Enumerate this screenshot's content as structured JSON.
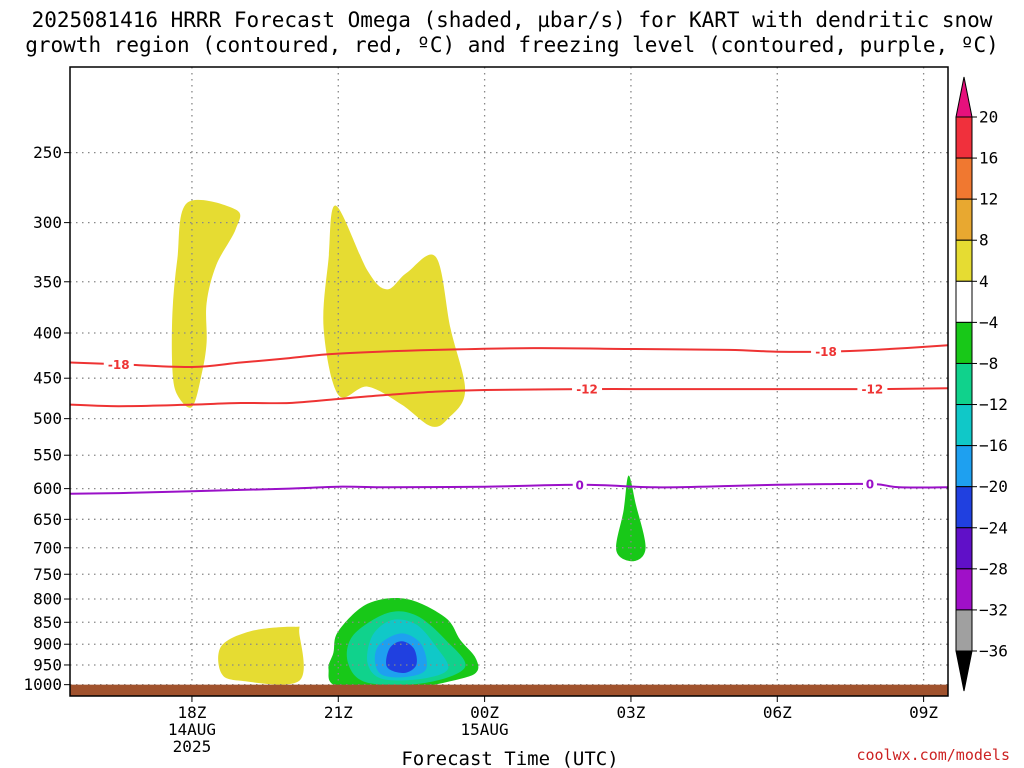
{
  "title_line1": "2025081416 HRRR Forecast Omega (shaded, µbar/s) for KART with dendritic snow",
  "title_line2": "growth region (contoured, red, ºC) and freezing level (contoured, purple, ºC)",
  "credit": "coolwx.com/models",
  "colors": {
    "temp_contour": "#ee3333",
    "freezing_contour": "#9a10c8",
    "ground": "#a0522d",
    "frame": "#000000",
    "grid": "#888888"
  },
  "chart_data": {
    "type": "heatmap",
    "xlabel": "Forecast Time (UTC)",
    "ylabel": "",
    "x_range_hours_utc_aug14": [
      15.5,
      33.5
    ],
    "y_range_hpa": [
      1030,
      200
    ],
    "y_scale": "log-pressure",
    "grid": true,
    "x_ticks": [
      {
        "hour": 18,
        "label": "18Z",
        "sub1": "14AUG",
        "sub2": "2025"
      },
      {
        "hour": 21,
        "label": "21Z",
        "sub1": "",
        "sub2": ""
      },
      {
        "hour": 24,
        "label": "00Z",
        "sub1": "15AUG",
        "sub2": ""
      },
      {
        "hour": 27,
        "label": "03Z",
        "sub1": "",
        "sub2": ""
      },
      {
        "hour": 30,
        "label": "06Z",
        "sub1": "",
        "sub2": ""
      },
      {
        "hour": 33,
        "label": "09Z",
        "sub1": "",
        "sub2": ""
      }
    ],
    "y_ticks": [
      250,
      300,
      350,
      400,
      450,
      500,
      550,
      600,
      650,
      700,
      750,
      800,
      850,
      900,
      950,
      1000
    ],
    "colorbar": {
      "labels": [
        "20",
        "16",
        "12",
        "8",
        "4",
        "−4",
        "−8",
        "−12",
        "−16",
        "−20",
        "−24",
        "−28",
        "−32",
        "−36"
      ],
      "bins": [
        {
          "lo": 16,
          "hi": 20,
          "color": "#f0303c"
        },
        {
          "lo": 12,
          "hi": 16,
          "color": "#f07830"
        },
        {
          "lo": 8,
          "hi": 12,
          "color": "#e8a830"
        },
        {
          "lo": 4,
          "hi": 8,
          "color": "#e6dc32"
        },
        {
          "lo": -4,
          "hi": 4,
          "color": "#ffffff"
        },
        {
          "lo": -8,
          "hi": -4,
          "color": "#18c818"
        },
        {
          "lo": -12,
          "hi": -8,
          "color": "#10d28c"
        },
        {
          "lo": -16,
          "hi": -12,
          "color": "#10c8c8"
        },
        {
          "lo": -20,
          "hi": -16,
          "color": "#1ea0f0"
        },
        {
          "lo": -24,
          "hi": -20,
          "color": "#2040e0"
        },
        {
          "lo": -28,
          "hi": -24,
          "color": "#6010c8"
        },
        {
          "lo": -32,
          "hi": -28,
          "color": "#a010c8"
        },
        {
          "lo": -36,
          "hi": -32,
          "color": "#a0a0a0"
        }
      ],
      "over_color": "#e6107c",
      "under_color": "#000000"
    },
    "omega_regions": [
      {
        "bin": "4 to 8",
        "color": "#e6dc32",
        "points": [
          [
            17.9,
            285
          ],
          [
            18.9,
            290
          ],
          [
            18.9,
            305
          ],
          [
            18.5,
            335
          ],
          [
            18.3,
            370
          ],
          [
            18.3,
            410
          ],
          [
            18.2,
            445
          ],
          [
            18.0,
            485
          ],
          [
            17.7,
            470
          ],
          [
            17.6,
            440
          ],
          [
            17.6,
            380
          ],
          [
            17.7,
            330
          ]
        ]
      },
      {
        "bin": "4 to 8",
        "color": "#e6dc32",
        "points": [
          [
            20.95,
            287
          ],
          [
            21.6,
            340
          ],
          [
            22.0,
            357
          ],
          [
            22.4,
            342
          ],
          [
            23.0,
            328
          ],
          [
            23.3,
            395
          ],
          [
            23.6,
            465
          ],
          [
            23.25,
            500
          ],
          [
            22.9,
            510
          ],
          [
            22.3,
            482
          ],
          [
            21.6,
            460
          ],
          [
            21.0,
            470
          ],
          [
            20.7,
            395
          ],
          [
            20.8,
            330
          ]
        ]
      },
      {
        "bin": "4 to 8",
        "color": "#e6dc32",
        "points": [
          [
            18.6,
            905
          ],
          [
            19.2,
            870
          ],
          [
            20.1,
            860
          ],
          [
            20.2,
            875
          ],
          [
            20.2,
            990
          ],
          [
            19.0,
            990
          ],
          [
            18.6,
            970
          ]
        ]
      },
      {
        "bin": "-8 to -4",
        "color": "#18c818",
        "points": [
          [
            26.95,
            580
          ],
          [
            27.1,
            625
          ],
          [
            27.3,
            700
          ],
          [
            27.05,
            725
          ],
          [
            26.7,
            705
          ],
          [
            26.85,
            635
          ]
        ]
      },
      {
        "bin": "-8 to -4",
        "color": "#18c818",
        "points": [
          [
            21.0,
            870
          ],
          [
            21.6,
            810
          ],
          [
            22.4,
            800
          ],
          [
            23.2,
            840
          ],
          [
            23.5,
            890
          ],
          [
            23.8,
            930
          ],
          [
            23.85,
            965
          ],
          [
            23.5,
            985
          ],
          [
            22.4,
            1010
          ],
          [
            21.0,
            1005
          ],
          [
            20.8,
            960
          ],
          [
            20.9,
            920
          ]
        ]
      },
      {
        "bin": "-12 to -8",
        "color": "#10d28c",
        "points": [
          [
            21.3,
            880
          ],
          [
            22.0,
            830
          ],
          [
            22.6,
            835
          ],
          [
            23.2,
            890
          ],
          [
            23.6,
            955
          ],
          [
            22.8,
            995
          ],
          [
            21.6,
            995
          ],
          [
            21.2,
            945
          ]
        ]
      },
      {
        "bin": "-16 to -12",
        "color": "#10c8c8",
        "points": [
          [
            21.7,
            880
          ],
          [
            22.1,
            845
          ],
          [
            22.6,
            855
          ],
          [
            23.0,
            905
          ],
          [
            23.25,
            960
          ],
          [
            22.7,
            985
          ],
          [
            21.9,
            985
          ],
          [
            21.6,
            945
          ]
        ]
      },
      {
        "bin": "-20 to -16",
        "color": "#1ea0f0",
        "points": [
          [
            21.85,
            900
          ],
          [
            22.3,
            875
          ],
          [
            22.7,
            900
          ],
          [
            22.8,
            960
          ],
          [
            22.4,
            980
          ],
          [
            21.9,
            975
          ],
          [
            21.75,
            940
          ]
        ]
      },
      {
        "bin": "-24 to -20",
        "color": "#2040e0",
        "points": [
          [
            22.05,
            910
          ],
          [
            22.3,
            893
          ],
          [
            22.55,
            910
          ],
          [
            22.6,
            950
          ],
          [
            22.35,
            970
          ],
          [
            22.0,
            955
          ]
        ]
      }
    ],
    "contours": [
      {
        "label": "-18",
        "kind": "dendritic snow growth region (red)",
        "color": "#ee3333",
        "label_hours": [
          16.5,
          31.0
        ],
        "points": [
          [
            15.5,
            432
          ],
          [
            16.5,
            434
          ],
          [
            18.0,
            437
          ],
          [
            19.0,
            432
          ],
          [
            20.0,
            427
          ],
          [
            21.0,
            422
          ],
          [
            23.0,
            418
          ],
          [
            25.0,
            416
          ],
          [
            27.0,
            417
          ],
          [
            29.0,
            418
          ],
          [
            30.0,
            420
          ],
          [
            31.0,
            420
          ],
          [
            32.0,
            418
          ],
          [
            33.5,
            413
          ]
        ]
      },
      {
        "label": "-12",
        "kind": "dendritic snow growth region (red)",
        "color": "#ee3333",
        "label_hours": [
          26.1,
          31.95
        ],
        "points": [
          [
            15.5,
            482
          ],
          [
            16.5,
            484
          ],
          [
            18.0,
            482
          ],
          [
            19.0,
            480
          ],
          [
            20.0,
            480
          ],
          [
            21.0,
            475
          ],
          [
            22.0,
            470
          ],
          [
            23.0,
            466
          ],
          [
            24.0,
            464
          ],
          [
            26.0,
            463
          ],
          [
            28.0,
            463
          ],
          [
            30.0,
            463
          ],
          [
            32.0,
            463
          ],
          [
            33.5,
            462
          ]
        ]
      },
      {
        "label": "0",
        "kind": "freezing level (purple)",
        "color": "#9a10c8",
        "label_hours": [
          25.95,
          31.9
        ],
        "points": [
          [
            15.5,
            608
          ],
          [
            16.5,
            607
          ],
          [
            18.0,
            604
          ],
          [
            20.0,
            600
          ],
          [
            21.0,
            597
          ],
          [
            22.0,
            598
          ],
          [
            24.0,
            597
          ],
          [
            26.0,
            594
          ],
          [
            27.5,
            598
          ],
          [
            29.0,
            596
          ],
          [
            30.0,
            594
          ],
          [
            31.0,
            593
          ],
          [
            32.0,
            593
          ],
          [
            32.5,
            598
          ],
          [
            33.5,
            598
          ]
        ]
      }
    ],
    "ground": {
      "label": "",
      "pressure_hpa": 1000,
      "color": "#a0522d"
    }
  }
}
